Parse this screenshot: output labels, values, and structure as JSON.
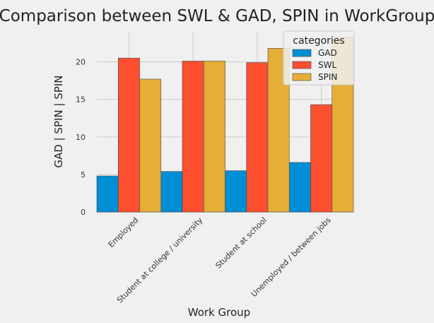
{
  "chart_data": {
    "type": "bar",
    "title": "Comparison between SWL & GAD, SPIN in WorkGroup",
    "xlabel": "Work Group",
    "ylabel": "GAD | SPIN | SPIN",
    "categories": [
      "Employed",
      "Student at college / university",
      "Student at school",
      "Unemployed / between jobs"
    ],
    "series": [
      {
        "name": "GAD",
        "color": "#008fd5",
        "values": [
          4.8,
          5.4,
          5.5,
          6.6
        ]
      },
      {
        "name": "SWL",
        "color": "#fc4f30",
        "values": [
          20.5,
          20.1,
          19.9,
          14.3
        ]
      },
      {
        "name": "SPIN",
        "color": "#e5ae38",
        "values": [
          17.7,
          20.1,
          21.8,
          23.3
        ]
      }
    ],
    "ylim": [
      0,
      24
    ],
    "yticks": [
      0,
      5,
      10,
      15,
      20
    ],
    "grid": true,
    "legend": {
      "title": "categories",
      "placement": "top-right"
    }
  }
}
